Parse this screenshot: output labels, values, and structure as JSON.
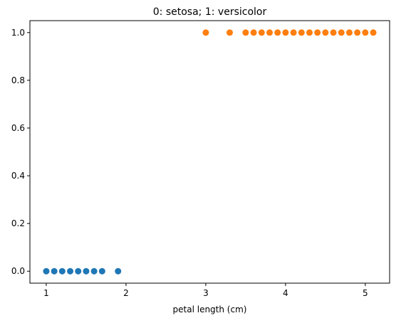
{
  "chart_data": {
    "type": "scatter",
    "title": "0: setosa; 1: versicolor",
    "xlabel": "petal length (cm)",
    "ylabel": "",
    "xlim": [
      0.795,
      5.305
    ],
    "ylim": [
      -0.05,
      1.05
    ],
    "xticks": [
      1,
      2,
      3,
      4,
      5
    ],
    "xtick_labels": [
      "1",
      "2",
      "3",
      "4",
      "5"
    ],
    "yticks": [
      0.0,
      0.2,
      0.4,
      0.6,
      0.8,
      1.0
    ],
    "ytick_labels": [
      "0.0",
      "0.2",
      "0.4",
      "0.6",
      "0.8",
      "1.0"
    ],
    "grid": false,
    "series": [
      {
        "color": "#1f77b4",
        "x": [
          1.0,
          1.1,
          1.2,
          1.3,
          1.4,
          1.5,
          1.6,
          1.7,
          1.9
        ],
        "y": [
          0,
          0,
          0,
          0,
          0,
          0,
          0,
          0,
          0
        ]
      },
      {
        "color": "#ff7f0e",
        "x": [
          3.0,
          3.3,
          3.5,
          3.6,
          3.7,
          3.8,
          3.9,
          4.0,
          4.1,
          4.2,
          4.3,
          4.4,
          4.5,
          4.6,
          4.7,
          4.8,
          4.9,
          5.0,
          5.1
        ],
        "y": [
          1,
          1,
          1,
          1,
          1,
          1,
          1,
          1,
          1,
          1,
          1,
          1,
          1,
          1,
          1,
          1,
          1,
          1,
          1
        ]
      }
    ]
  }
}
